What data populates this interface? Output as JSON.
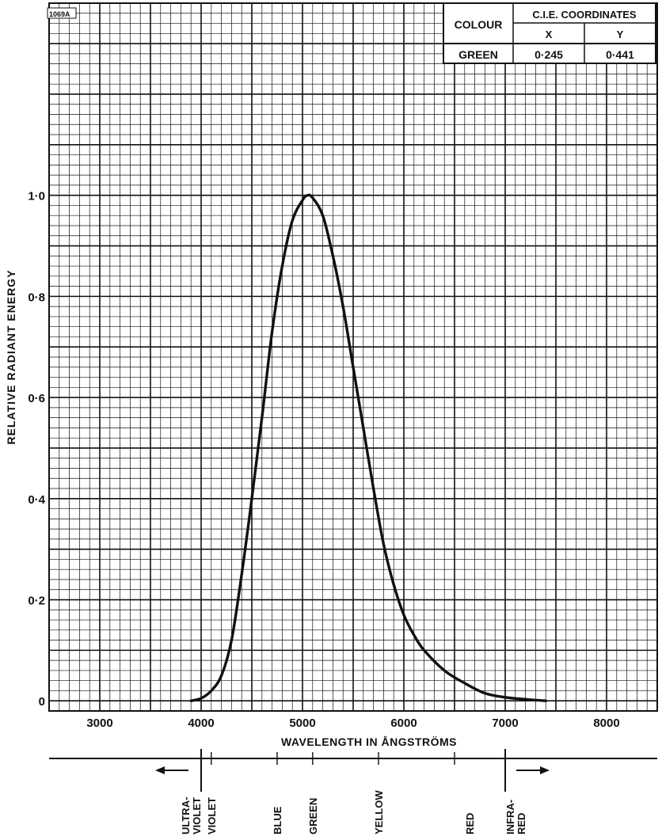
{
  "figure_id": "1069A",
  "chart_data": {
    "type": "line",
    "xlabel": "WAVELENGTH IN ÅNGSTRÖMS",
    "ylabel": "RELATIVE RADIANT ENERGY",
    "xlim": [
      2500,
      8500
    ],
    "ylim": [
      -0.02,
      1.38
    ],
    "x_ticks": [
      3000,
      4000,
      5000,
      6000,
      7000,
      8000
    ],
    "x_tick_labels": [
      "3000",
      "4000",
      "5000",
      "6000",
      "7000",
      "8000"
    ],
    "y_ticks": [
      0,
      0.2,
      0.4,
      0.6,
      0.8,
      1.0
    ],
    "y_tick_labels": [
      "0",
      "0·2",
      "0·4",
      "0·6",
      "0·8",
      "1·0"
    ],
    "grid": true,
    "series": [
      {
        "x": [
          3900,
          4000,
          4100,
          4200,
          4300,
          4400,
          4500,
          4600,
          4700,
          4800,
          4900,
          5000,
          5050,
          5100,
          5200,
          5300,
          5400,
          5500,
          5600,
          5700,
          5800,
          5900,
          6000,
          6100,
          6200,
          6400,
          6600,
          6800,
          7000,
          7200,
          7400
        ],
        "y": [
          0.0,
          0.005,
          0.02,
          0.05,
          0.12,
          0.25,
          0.4,
          0.56,
          0.73,
          0.86,
          0.95,
          0.99,
          1.0,
          0.995,
          0.96,
          0.88,
          0.78,
          0.66,
          0.54,
          0.42,
          0.31,
          0.23,
          0.17,
          0.13,
          0.1,
          0.06,
          0.035,
          0.015,
          0.007,
          0.003,
          0.0
        ]
      }
    ]
  },
  "cie_table": {
    "col_colour": "COLOUR",
    "col_coordinates": "C.I.E. COORDINATES",
    "col_x": "X",
    "col_y": "Y",
    "row_colour": "GREEN",
    "row_x": "0·245",
    "row_y": "0·441"
  },
  "spectrum": {
    "bands": [
      {
        "label": "ULTRA-\nVIOLET",
        "x": 3900
      },
      {
        "label": "VIOLET",
        "x": 4100
      },
      {
        "label": "BLUE",
        "x": 4750
      },
      {
        "label": "GREEN",
        "x": 5100
      },
      {
        "label": "YELLOW",
        "x": 5750
      },
      {
        "label": "RED",
        "x": 6650
      },
      {
        "label": "INFRA-\nRED",
        "x": 7100
      }
    ],
    "ticks": [
      4000,
      4100,
      4750,
      5100,
      5750,
      6500,
      7000
    ]
  }
}
